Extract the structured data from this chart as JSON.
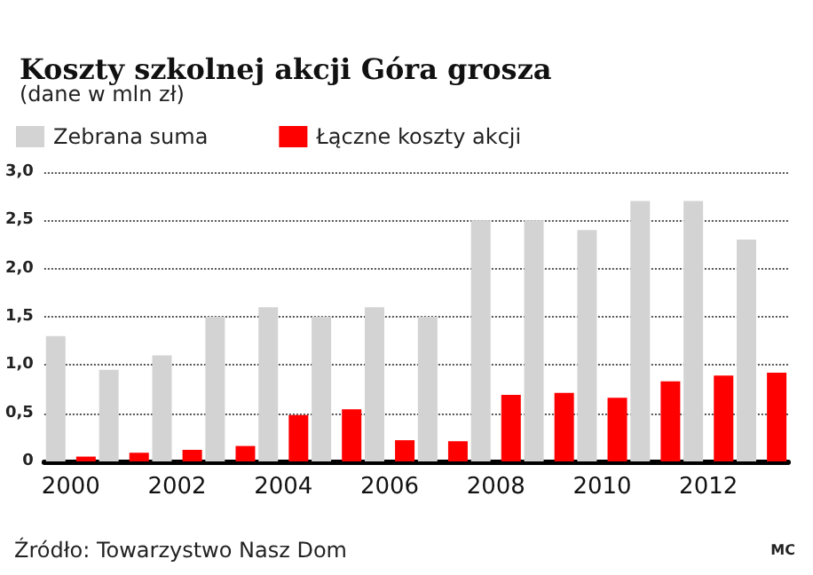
{
  "chart_data": {
    "type": "bar",
    "title": "Koszty szkolnej akcji Góra grosza",
    "subtitle": "(dane w mln zł)",
    "categories": [
      "2000",
      null,
      "2002",
      null,
      "2004",
      null,
      "2006",
      null,
      "2008",
      null,
      "2010",
      null,
      "2012",
      null
    ],
    "series": [
      {
        "name": "Zebrana suma",
        "color": "#d3d3d3",
        "values": [
          1.3,
          0.95,
          1.1,
          1.5,
          1.6,
          1.5,
          1.6,
          1.5,
          2.5,
          2.5,
          2.4,
          2.7,
          2.7,
          2.3
        ]
      },
      {
        "name": "Łączne koszty akcji",
        "color": "#ff0000",
        "values": [
          0.05,
          0.09,
          0.12,
          0.16,
          0.48,
          0.54,
          0.22,
          0.21,
          0.69,
          0.71,
          0.66,
          0.83,
          0.89,
          0.92
        ]
      }
    ],
    "ylim": [
      0,
      3
    ],
    "yticks": [
      0,
      {
        "value": 0.5,
        "label": "0,5"
      },
      {
        "value": 1,
        "label": "1,0"
      },
      {
        "value": 1.5,
        "label": "1,5"
      },
      {
        "value": 2,
        "label": "2,0"
      },
      {
        "value": 2.5,
        "label": "2,5"
      },
      {
        "value": 3,
        "label": "3,0"
      }
    ],
    "grid": "y",
    "line_style": "dotted",
    "legend": "top left",
    "annotations": [
      "Źródło: Towarzystwo Nasz Dom",
      "MC"
    ]
  }
}
